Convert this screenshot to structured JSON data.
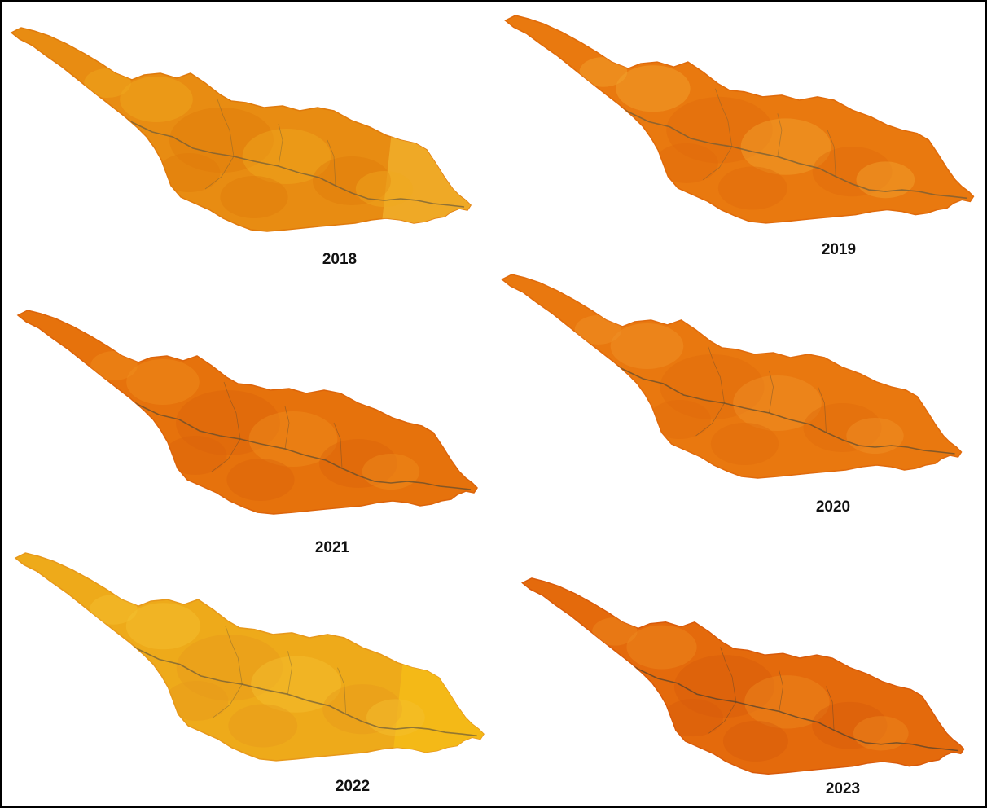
{
  "figure": {
    "panels": [
      {
        "year": "2018",
        "fill": "#e88c12",
        "fill_light": "#f0a820",
        "fill_dark": "#e07a0c",
        "river": "#6a5a3a",
        "east_tile": "#f0ae2a"
      },
      {
        "year": "2019",
        "fill": "#e9790f",
        "fill_light": "#f2a52e",
        "fill_dark": "#e06a0a",
        "river": "#6a5a3a",
        "east_tile": ""
      },
      {
        "year": "2021",
        "fill": "#e6720c",
        "fill_light": "#ef8e1c",
        "fill_dark": "#dc640a",
        "river": "#5a4a30",
        "east_tile": ""
      },
      {
        "year": "2020",
        "fill": "#e9780f",
        "fill_light": "#f09228",
        "fill_dark": "#e06a0c",
        "river": "#5a4a30",
        "east_tile": ""
      },
      {
        "year": "2022",
        "fill": "#eeaa1a",
        "fill_light": "#f4c030",
        "fill_dark": "#e7981a",
        "river": "#6a5a3a",
        "east_tile": "#f4bc18"
      },
      {
        "year": "2023",
        "fill": "#e46a0c",
        "fill_light": "#ee8a20",
        "fill_dark": "#d85a0a",
        "river": "#4a4030",
        "east_tile": ""
      }
    ]
  }
}
